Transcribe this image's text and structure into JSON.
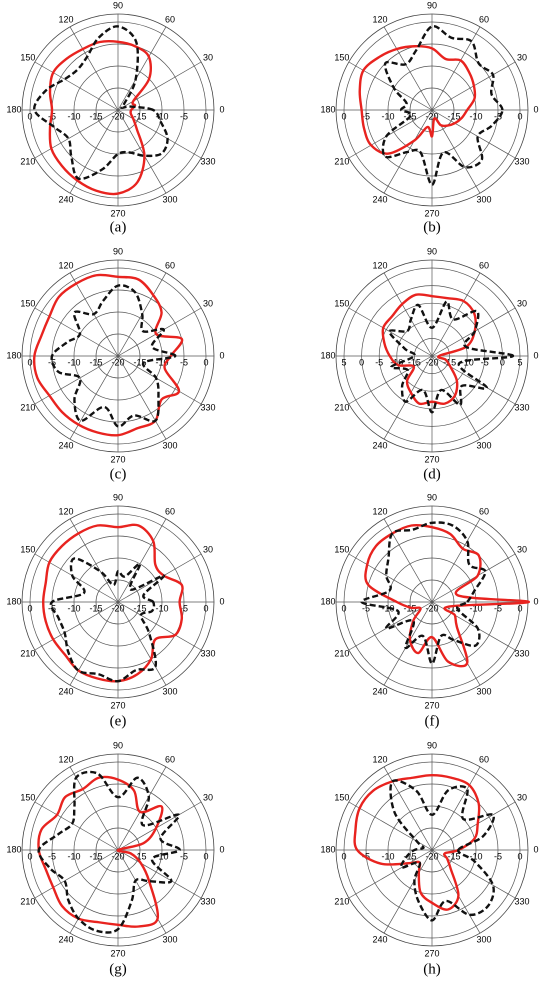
{
  "chart_data": [
    {
      "type": "polar",
      "caption": "(a)",
      "theta": [
        0,
        15,
        30,
        45,
        60,
        75,
        90,
        105,
        120,
        135,
        150,
        165,
        180,
        195,
        210,
        225,
        240,
        255,
        270,
        285,
        300,
        315,
        330,
        345
      ],
      "rlim": [
        -20,
        0
      ],
      "rticks": [
        -20,
        -15,
        -10,
        -5,
        0
      ],
      "thetaticks": [
        0,
        30,
        60,
        90,
        120,
        150,
        180,
        210,
        240,
        270,
        300,
        330
      ],
      "grid": true,
      "series": [
        {
          "color": "#e8231f",
          "dash": false,
          "values": [
            -17,
            -16,
            -16,
            -10,
            -6,
            -5,
            -4.5,
            -4,
            -4,
            -3.5,
            -3,
            -4,
            -5,
            -4,
            -2.5,
            -2,
            -1.5,
            -1,
            -1,
            -3,
            -8,
            -14,
            -16,
            -17
          ]
        },
        {
          "color": "#111111",
          "dash": true,
          "values": [
            -12,
            -17,
            -19,
            -18,
            -12,
            -4,
            -1,
            -3,
            -6,
            -7,
            -6,
            -3,
            -1,
            -5,
            -7,
            -5,
            -2,
            -6,
            -10,
            -10,
            -8,
            -6,
            -7,
            -10
          ]
        }
      ]
    },
    {
      "type": "polar",
      "caption": "(b)",
      "theta": [
        0,
        15,
        30,
        45,
        60,
        75,
        90,
        105,
        120,
        135,
        150,
        165,
        180,
        195,
        210,
        225,
        240,
        255,
        270,
        285,
        300,
        315,
        330,
        345
      ],
      "rlim": [
        -20,
        0
      ],
      "rticks": [
        -20,
        -15,
        -10,
        -5,
        0
      ],
      "thetaticks": [
        0,
        30,
        60,
        90,
        120,
        150,
        180,
        210,
        240,
        270,
        300,
        330
      ],
      "grid": true,
      "series": [
        {
          "color": "#e8231f",
          "dash": false,
          "values": [
            -12,
            -10,
            -9,
            -8,
            -7,
            -8,
            -6,
            -5,
            -4,
            -3,
            -2,
            -3,
            -4,
            -4,
            -4,
            -6,
            -12,
            -16,
            -14,
            -18,
            -16,
            -15,
            -14,
            -13
          ]
        },
        {
          "color": "#111111",
          "dash": true,
          "values": [
            -4,
            -6,
            -4,
            -5,
            -2,
            -3,
            -1,
            -6,
            -8,
            -5,
            -10,
            -14,
            -13,
            -15,
            -8,
            -5,
            -9,
            -10,
            -3,
            -10,
            -5,
            -4,
            -8,
            -6
          ]
        }
      ]
    },
    {
      "type": "polar",
      "caption": "(c)",
      "theta": [
        0,
        15,
        30,
        45,
        60,
        75,
        90,
        105,
        120,
        135,
        150,
        165,
        180,
        195,
        210,
        225,
        240,
        255,
        270,
        285,
        300,
        315,
        330,
        345
      ],
      "rlim": [
        -20,
        0
      ],
      "rticks": [
        -20,
        -15,
        -10,
        -5,
        0
      ],
      "thetaticks": [
        0,
        30,
        60,
        90,
        120,
        150,
        180,
        210,
        240,
        270,
        300,
        330
      ],
      "grid": true,
      "series": [
        {
          "color": "#e8231f",
          "dash": false,
          "values": [
            -8,
            -5,
            -10,
            -6,
            -4,
            -2,
            -2,
            -1,
            -1,
            -1,
            -2,
            -2,
            -1,
            -1,
            -2,
            -2,
            -2,
            -2,
            -2,
            -3,
            -3,
            -6,
            -4,
            -9
          ]
        },
        {
          "color": "#111111",
          "dash": true,
          "values": [
            -7,
            -12,
            -8,
            -12,
            -9,
            -5,
            -4,
            -7,
            -9,
            -6,
            -10,
            -8,
            -5,
            -6,
            -10,
            -6,
            -3,
            -8,
            -4,
            -6,
            -3,
            -7,
            -10,
            -14
          ]
        }
      ]
    },
    {
      "type": "polar",
      "caption": "(d)",
      "theta": [
        0,
        15,
        30,
        45,
        60,
        75,
        90,
        105,
        120,
        135,
        150,
        165,
        180,
        195,
        210,
        225,
        240,
        255,
        270,
        285,
        300,
        315,
        330,
        345
      ],
      "rlim": [
        -20,
        5
      ],
      "rticks": [
        -20,
        -15,
        -10,
        -5,
        0,
        5
      ],
      "thetaticks": [
        0,
        30,
        60,
        90,
        120,
        150,
        180,
        210,
        240,
        270,
        300,
        330
      ],
      "grid": true,
      "series": [
        {
          "color": "#e8231f",
          "dash": false,
          "values": [
            -18,
            -10,
            -6,
            -3,
            -2,
            -3,
            -3,
            -2,
            -3,
            -4,
            -4,
            -6,
            -8,
            -10,
            -14,
            -10,
            -8,
            -6,
            -7,
            -6,
            -7,
            -10,
            -14,
            -16
          ]
        },
        {
          "color": "#111111",
          "dash": true,
          "values": [
            3,
            -10,
            -6,
            -2,
            -8,
            -4,
            -12,
            -5,
            -8,
            -10,
            -6,
            -12,
            -15,
            -8,
            -12,
            -8,
            -5,
            -10,
            -4,
            -10,
            -4,
            -8,
            -2,
            -12
          ]
        }
      ]
    },
    {
      "type": "polar",
      "caption": "(e)",
      "theta": [
        0,
        15,
        30,
        45,
        60,
        75,
        90,
        105,
        120,
        135,
        150,
        165,
        180,
        195,
        210,
        225,
        240,
        255,
        270,
        285,
        300,
        315,
        330,
        345
      ],
      "rlim": [
        -20,
        0
      ],
      "rticks": [
        -20,
        -15,
        -10,
        -5,
        0
      ],
      "thetaticks": [
        0,
        30,
        60,
        90,
        120,
        150,
        180,
        210,
        240,
        270,
        300,
        330
      ],
      "grid": true,
      "series": [
        {
          "color": "#e8231f",
          "dash": false,
          "values": [
            -6,
            -5,
            -8,
            -8,
            -4,
            -2,
            -3,
            -2,
            -2,
            -2,
            -2,
            -3,
            -3,
            -3,
            -3,
            -3,
            -2,
            -2,
            -2,
            -3,
            -5,
            -8,
            -5,
            -5
          ]
        },
        {
          "color": "#111111",
          "dash": true,
          "values": [
            -12,
            -14,
            -8,
            -16,
            -10,
            -14,
            -13,
            -16,
            -12,
            -6,
            -8,
            -12,
            -5,
            -6,
            -6,
            -4,
            -2,
            -3,
            -2,
            -4,
            -3,
            -10,
            -14,
            -12
          ]
        }
      ]
    },
    {
      "type": "polar",
      "caption": "(f)",
      "theta": [
        0,
        15,
        30,
        45,
        60,
        75,
        90,
        105,
        120,
        135,
        150,
        165,
        180,
        195,
        210,
        225,
        240,
        255,
        270,
        285,
        300,
        315,
        330,
        345
      ],
      "rlim": [
        -20,
        0
      ],
      "rticks": [
        -20,
        -15,
        -10,
        -5,
        0
      ],
      "thetaticks": [
        0,
        30,
        60,
        90,
        120,
        150,
        180,
        210,
        240,
        270,
        300,
        330
      ],
      "grid": true,
      "series": [
        {
          "color": "#e8231f",
          "dash": false,
          "values": [
            2,
            -14,
            -8,
            -5,
            -6,
            -4,
            -3,
            -2,
            -2,
            -2,
            -3,
            -5,
            -12,
            -15,
            -17,
            -14,
            -10,
            -8,
            -12,
            -6,
            -4,
            -12,
            -14,
            -16
          ]
        },
        {
          "color": "#111111",
          "dash": true,
          "values": [
            -12,
            -10,
            -6,
            -8,
            -4,
            -2,
            -2,
            -3,
            -2,
            -6,
            -8,
            -10,
            -4,
            -12,
            -8,
            -14,
            -8,
            -12,
            -6,
            -12,
            -10,
            -6,
            -8,
            -14
          ]
        }
      ]
    },
    {
      "type": "polar",
      "caption": "(g)",
      "theta": [
        0,
        15,
        30,
        45,
        60,
        75,
        90,
        105,
        120,
        135,
        150,
        165,
        180,
        195,
        210,
        225,
        240,
        255,
        270,
        285,
        300,
        315,
        330,
        345
      ],
      "rlim": [
        -20,
        0
      ],
      "rticks": [
        -20,
        -15,
        -10,
        -5,
        0
      ],
      "thetaticks": [
        0,
        30,
        60,
        90,
        120,
        150,
        180,
        210,
        240,
        270,
        300,
        330
      ],
      "grid": true,
      "series": [
        {
          "color": "#e8231f",
          "dash": false,
          "values": [
            -20,
            -14,
            -10,
            -6,
            -10,
            -6,
            -4,
            -3,
            -4,
            -3,
            -4,
            -2,
            -2,
            -3,
            -3,
            -2,
            -2,
            -3,
            -3,
            -2,
            -2,
            -10,
            -14,
            -17
          ]
        },
        {
          "color": "#111111",
          "dash": true,
          "values": [
            -6,
            -10,
            -4,
            -12,
            -6,
            -3,
            -8,
            -2,
            -1,
            -6,
            -8,
            -6,
            -2,
            -4,
            -6,
            -4,
            -2,
            -1,
            -2,
            -8,
            -12,
            -10,
            -6,
            -12
          ]
        }
      ]
    },
    {
      "type": "polar",
      "caption": "(h)",
      "theta": [
        0,
        15,
        30,
        45,
        60,
        75,
        90,
        105,
        120,
        135,
        150,
        165,
        180,
        195,
        210,
        225,
        240,
        255,
        270,
        285,
        300,
        315,
        330,
        345
      ],
      "rlim": [
        -20,
        0
      ],
      "rticks": [
        -20,
        -15,
        -10,
        -5,
        0
      ],
      "thetaticks": [
        0,
        30,
        60,
        90,
        120,
        150,
        180,
        210,
        240,
        270,
        300,
        330
      ],
      "grid": true,
      "series": [
        {
          "color": "#e8231f",
          "dash": false,
          "values": [
            -14,
            -10,
            -8,
            -5,
            -3,
            -3,
            -3,
            -3,
            -2,
            -1,
            -1,
            -2,
            -3,
            -8,
            -14,
            -16,
            -14,
            -10,
            -8,
            -6,
            -8,
            -14,
            -16,
            -17
          ]
        },
        {
          "color": "#111111",
          "dash": true,
          "values": [
            -14,
            -8,
            -4,
            -10,
            -4,
            -6,
            -12,
            -6,
            -2,
            -8,
            -16,
            -18,
            -16,
            -14,
            -12,
            -16,
            -12,
            -8,
            -4,
            -8,
            -3,
            -2,
            -4,
            -10
          ]
        }
      ]
    }
  ]
}
